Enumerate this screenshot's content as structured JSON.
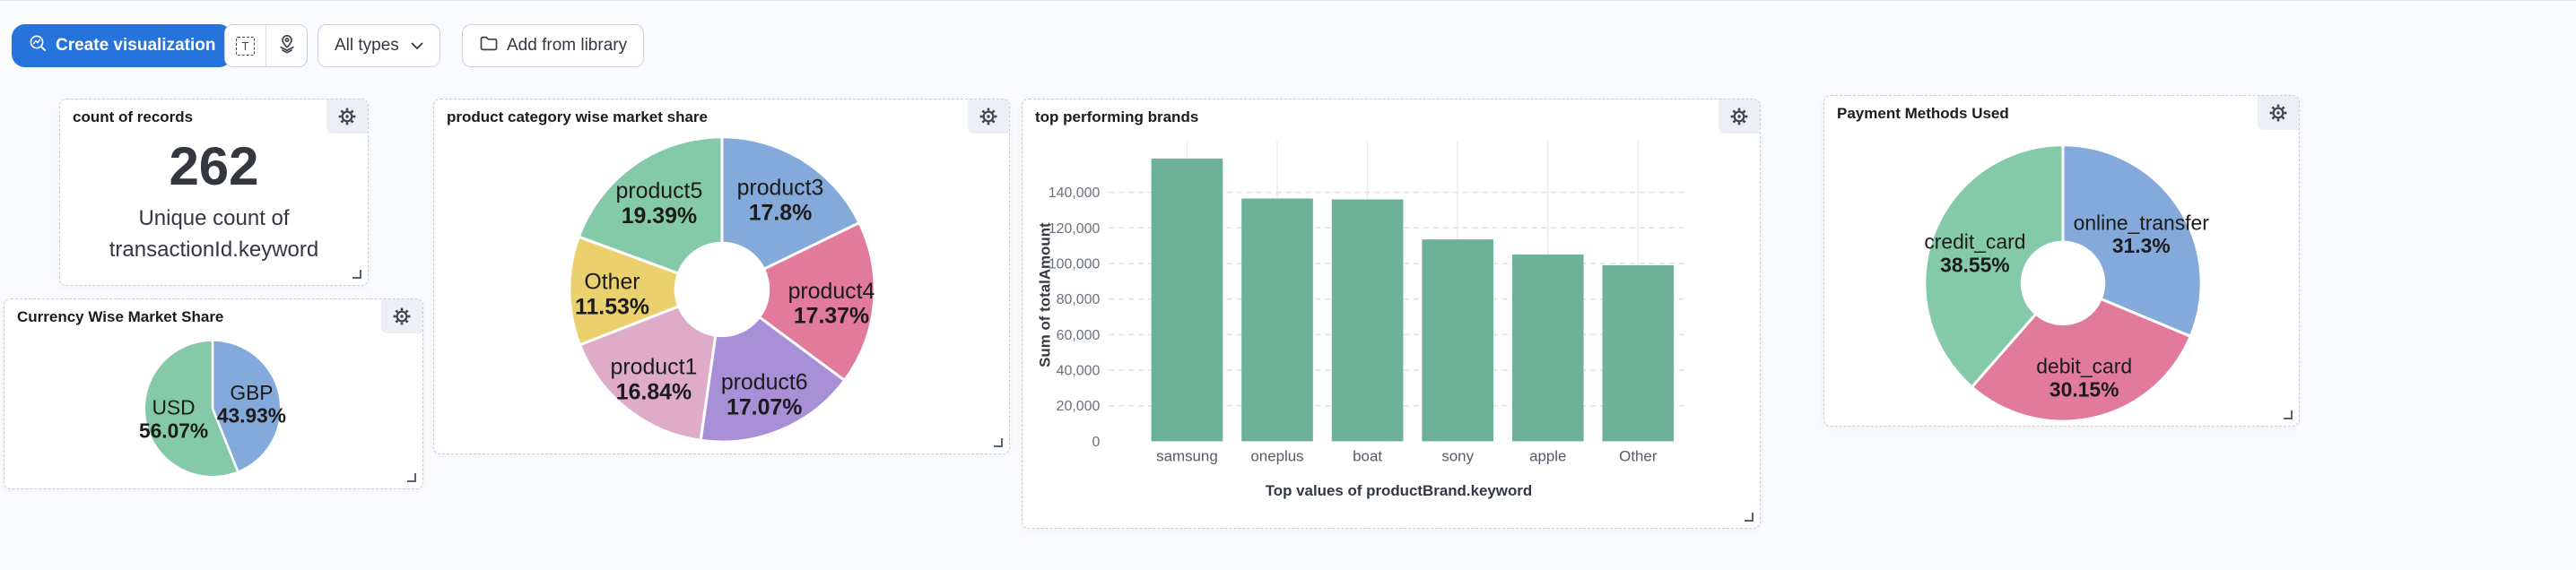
{
  "toolbar": {
    "create_button_label": "Create visualization",
    "type_filter_label": "All types",
    "library_button_label": "Add from library",
    "icon_buttons": [
      {
        "name": "text-annotation-icon"
      },
      {
        "name": "maps-icon"
      }
    ]
  },
  "colors": {
    "primary_button": "#2573DB",
    "bar_green": "#6DB198",
    "pie_green": "#85CAA8",
    "pie_blue": "#84A9DB",
    "pie_pink": "#E27A9C",
    "pie_purple": "#A88FD6",
    "pie_mauve": "#DEABC9",
    "pie_yellow": "#EBD16E"
  },
  "panels": {
    "records": {
      "title": "count of records",
      "value": "262",
      "subtitle": "Unique count of transactionId.keyword"
    },
    "currency": {
      "title": "Currency Wise Market Share"
    },
    "category": {
      "title": "product category wise market share"
    },
    "brands": {
      "title": "top performing brands"
    },
    "payment": {
      "title": "Payment Methods Used"
    }
  },
  "chart_data": [
    {
      "id": "currency",
      "type": "pie",
      "title": "Currency Wise Market Share",
      "donut": false,
      "legend": false,
      "slices": [
        {
          "label": "GBP",
          "value": 43.93,
          "pct_label": "43.93%",
          "color": "#84A9DB"
        },
        {
          "label": "USD",
          "value": 56.07,
          "pct_label": "56.07%",
          "color": "#85CAA8"
        }
      ]
    },
    {
      "id": "category",
      "type": "pie",
      "title": "product category wise market share",
      "donut": true,
      "legend": false,
      "slices": [
        {
          "label": "product3",
          "value": 17.8,
          "pct_label": "17.8%",
          "color": "#84A9DB"
        },
        {
          "label": "product4",
          "value": 17.37,
          "pct_label": "17.37%",
          "color": "#E27A9C"
        },
        {
          "label": "product6",
          "value": 17.07,
          "pct_label": "17.07%",
          "color": "#A88FD6"
        },
        {
          "label": "product1",
          "value": 16.84,
          "pct_label": "16.84%",
          "color": "#DEABC9"
        },
        {
          "label": "Other",
          "value": 11.53,
          "pct_label": "11.53%",
          "color": "#EBD16E"
        },
        {
          "label": "product5",
          "value": 19.39,
          "pct_label": "19.39%",
          "color": "#85CAA8"
        }
      ]
    },
    {
      "id": "payment",
      "type": "pie",
      "title": "Payment Methods Used",
      "donut": true,
      "legend": false,
      "slices": [
        {
          "label": "online_transfer",
          "value": 31.3,
          "pct_label": "31.3%",
          "color": "#84A9DB"
        },
        {
          "label": "debit_card",
          "value": 30.15,
          "pct_label": "30.15%",
          "color": "#E27A9C"
        },
        {
          "label": "credit_card",
          "value": 38.55,
          "pct_label": "38.55%",
          "color": "#85CAA8"
        }
      ]
    },
    {
      "id": "brands",
      "type": "bar",
      "title": "top performing brands",
      "categories": [
        "samsung",
        "oneplus",
        "boat",
        "sony",
        "apple",
        "Other"
      ],
      "values": [
        159000,
        136500,
        136000,
        113500,
        105000,
        99000
      ],
      "xlabel": "Top values of productBrand.keyword",
      "ylabel": "Sum of totalAmount",
      "ylim": [
        0,
        164600
      ],
      "ytick_step": 20000,
      "ytick_max": 140000,
      "grid": true,
      "bar_color": "#6DB198"
    }
  ]
}
